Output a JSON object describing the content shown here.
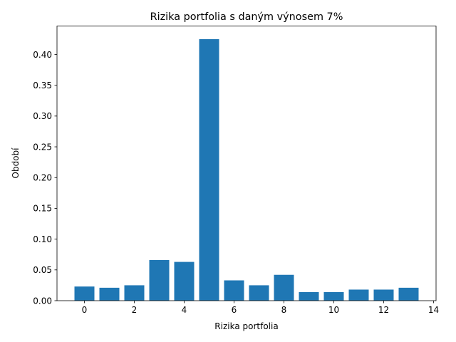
{
  "chart_data": {
    "type": "bar",
    "title": "Rizika portfolia s daným výnosem 7%",
    "xlabel": "Rizika portfolia",
    "ylabel": "Období",
    "x": [
      0,
      1,
      2,
      3,
      4,
      5,
      6,
      7,
      8,
      9,
      10,
      11,
      12,
      13
    ],
    "values": [
      0.023,
      0.021,
      0.025,
      0.066,
      0.063,
      0.425,
      0.033,
      0.025,
      0.042,
      0.014,
      0.014,
      0.018,
      0.018,
      0.021
    ],
    "xlim": [
      -1.1,
      14.1
    ],
    "ylim": [
      0,
      0.4463
    ],
    "xticks": [
      0,
      2,
      4,
      6,
      8,
      10,
      12,
      14
    ],
    "xtick_labels": [
      "0",
      "2",
      "4",
      "6",
      "8",
      "10",
      "12",
      "14"
    ],
    "yticks": [
      0,
      0.05,
      0.1,
      0.15,
      0.2,
      0.25,
      0.3,
      0.35,
      0.4
    ],
    "ytick_labels": [
      "0.00",
      "0.05",
      "0.10",
      "0.15",
      "0.20",
      "0.25",
      "0.30",
      "0.35",
      "0.40"
    ],
    "bar_color": "#1f77b4",
    "grid": false,
    "legend": "none"
  }
}
